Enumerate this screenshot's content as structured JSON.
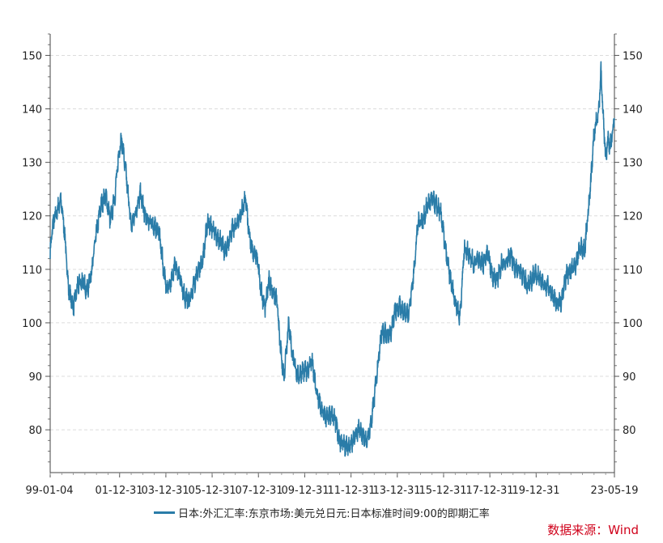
{
  "chart_data": {
    "type": "line",
    "title": "",
    "xlabel": "",
    "ylabel": "",
    "ylim": [
      72,
      154
    ],
    "grid": true,
    "legend_position": "bottom",
    "color": "#2a7ca8",
    "y_ticks": [
      80,
      90,
      100,
      110,
      120,
      130,
      140,
      150
    ],
    "x_ticks": [
      "99-01-04",
      "01-12-31",
      "03-12-31",
      "05-12-31",
      "07-12-31",
      "09-12-31",
      "11-12-31",
      "13-12-31",
      "15-12-31",
      "17-12-31",
      "19-12-31",
      "23-05-19"
    ],
    "series": [
      {
        "name": "日本:外汇汇率:东京市场:美元兑日元:日本标准时间9:00的即期汇率",
        "x": [
          1999.0,
          1999.1,
          1999.3,
          1999.45,
          1999.6,
          1999.8,
          2000.0,
          2000.2,
          2000.4,
          2000.6,
          2000.8,
          2001.0,
          2001.2,
          2001.4,
          2001.6,
          2001.8,
          2002.0,
          2002.1,
          2002.3,
          2002.5,
          2002.7,
          2002.9,
          2003.1,
          2003.3,
          2003.5,
          2003.7,
          2003.9,
          2004.0,
          2004.2,
          2004.4,
          2004.6,
          2004.8,
          2005.0,
          2005.2,
          2005.4,
          2005.6,
          2005.8,
          2005.95,
          2006.2,
          2006.4,
          2006.6,
          2006.8,
          2007.0,
          2007.2,
          2007.45,
          2007.6,
          2007.8,
          2007.95,
          2008.1,
          2008.3,
          2008.45,
          2008.6,
          2008.8,
          2008.95,
          2009.1,
          2009.3,
          2009.5,
          2009.7,
          2009.9,
          2010.1,
          2010.3,
          2010.5,
          2010.7,
          2010.9,
          2011.1,
          2011.3,
          2011.5,
          2011.7,
          2011.9,
          2012.1,
          2012.3,
          2012.5,
          2012.7,
          2012.9,
          2013.1,
          2013.3,
          2013.5,
          2013.7,
          2013.9,
          2014.1,
          2014.3,
          2014.5,
          2014.7,
          2014.9,
          2015.1,
          2015.3,
          2015.5,
          2015.7,
          2015.9,
          2016.1,
          2016.3,
          2016.5,
          2016.7,
          2016.9,
          2017.1,
          2017.3,
          2017.5,
          2017.7,
          2017.9,
          2018.1,
          2018.3,
          2018.5,
          2018.7,
          2018.9,
          2019.1,
          2019.3,
          2019.5,
          2019.7,
          2019.9,
          2020.1,
          2020.3,
          2020.5,
          2020.7,
          2020.9,
          2021.1,
          2021.3,
          2021.5,
          2021.7,
          2021.9,
          2022.1,
          2022.3,
          2022.5,
          2022.7,
          2022.8,
          2022.9,
          2023.0,
          2023.1,
          2023.2,
          2023.3,
          2023.38
        ],
        "values": [
          113,
          118,
          121,
          123,
          118,
          106,
          103,
          107,
          108,
          106,
          110,
          117,
          122,
          124,
          119,
          124,
          133,
          134,
          127,
          118,
          121,
          124,
          120,
          119,
          118,
          117,
          110,
          107,
          107,
          111,
          109,
          105,
          104,
          107,
          110,
          112,
          119,
          118,
          116,
          115,
          113,
          117,
          118,
          120,
          123,
          116,
          113,
          112,
          106,
          103,
          108,
          106,
          104,
          95,
          90,
          100,
          93,
          90,
          91,
          91,
          93,
          87,
          84,
          82,
          83,
          82,
          78,
          77,
          77,
          78,
          80,
          79,
          78,
          82,
          90,
          98,
          98,
          98,
          102,
          103,
          102,
          102,
          109,
          119,
          119,
          122,
          123,
          122,
          120,
          113,
          108,
          104,
          101,
          114,
          113,
          111,
          112,
          111,
          113,
          109,
          108,
          111,
          111,
          113,
          110,
          110,
          108,
          107,
          109,
          109,
          107,
          107,
          105,
          104,
          104,
          109,
          110,
          111,
          114,
          114,
          123,
          135,
          140,
          147,
          138,
          131,
          134,
          133,
          136,
          138
        ]
      }
    ]
  },
  "legend": {
    "label": "日本:外汇汇率:东京市场:美元兑日元:日本标准时间9:00的即期汇率"
  },
  "source": "数据来源：Wind"
}
